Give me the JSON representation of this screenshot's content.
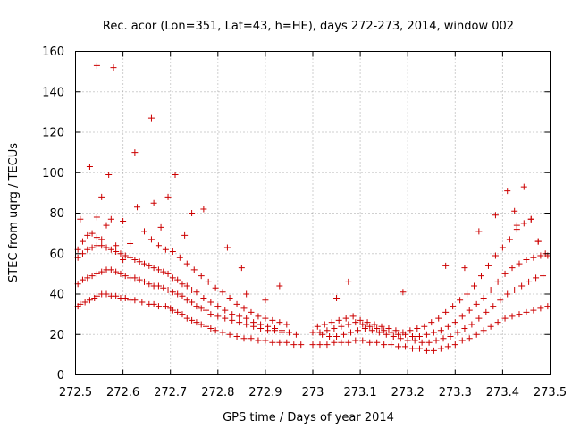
{
  "chart_data": {
    "type": "scatter",
    "title": "Rec. acor (Lon=351, Lat=43, h=HE), days 272-273, 2014, window 002",
    "xlabel": "GPS time / Days of year 2014",
    "ylabel": "STEC from uqrg / TECUs",
    "xlim": [
      272.5,
      273.5
    ],
    "ylim": [
      0,
      160
    ],
    "xticks": [
      "272.5",
      "272.6",
      "272.7",
      "272.8",
      "272.9",
      "273",
      "273.1",
      "273.2",
      "273.3",
      "273.4",
      "273.5"
    ],
    "yticks": [
      "0",
      "20",
      "40",
      "60",
      "80",
      "100",
      "120",
      "140",
      "160"
    ],
    "grid": true,
    "marker": "+",
    "color": "#cc0000",
    "series": [
      {
        "x": [
          272.505,
          272.51,
          272.52,
          272.53,
          272.54,
          272.545,
          272.555,
          272.565,
          272.575,
          272.585,
          272.595,
          272.605,
          272.615,
          272.625,
          272.64,
          272.655,
          272.665,
          272.675,
          272.69,
          272.7,
          272.705,
          272.715,
          272.725,
          272.735,
          272.745,
          272.755,
          272.765,
          272.775,
          272.785,
          272.795,
          272.81,
          272.825,
          272.84,
          272.855,
          272.87,
          272.885,
          272.9,
          272.915,
          272.93,
          272.945,
          272.96,
          272.975,
          273.0,
          273.015,
          273.03,
          273.045,
          273.06,
          273.075,
          273.09,
          273.105,
          273.12,
          273.135,
          273.15,
          273.165,
          273.18,
          273.195,
          273.21,
          273.225,
          273.24,
          273.255,
          273.27,
          273.285,
          273.3,
          273.315,
          273.33,
          273.345,
          273.36,
          273.375,
          273.39,
          273.405,
          273.42,
          273.435,
          273.45,
          273.465,
          273.48,
          273.495
        ],
        "y": [
          34,
          35,
          36,
          37,
          38,
          39,
          40,
          40,
          39,
          39,
          38,
          38,
          37,
          37,
          36,
          35,
          35,
          34,
          34,
          33,
          32,
          31,
          30,
          28,
          27,
          26,
          25,
          24,
          23,
          22,
          21,
          20,
          19,
          18,
          18,
          17,
          17,
          16,
          16,
          16,
          15,
          15,
          15,
          15,
          15,
          16,
          16,
          16,
          17,
          17,
          16,
          16,
          15,
          15,
          14,
          14,
          13,
          13,
          12,
          12,
          13,
          14,
          15,
          17,
          18,
          20,
          22,
          24,
          26,
          28,
          29,
          30,
          31,
          32,
          33,
          34
        ]
      },
      {
        "x": [
          272.505,
          272.515,
          272.525,
          272.535,
          272.545,
          272.555,
          272.565,
          272.575,
          272.585,
          272.595,
          272.605,
          272.615,
          272.625,
          272.635,
          272.645,
          272.655,
          272.665,
          272.675,
          272.685,
          272.695,
          272.705,
          272.715,
          272.725,
          272.735,
          272.745,
          272.755,
          272.765,
          272.775,
          272.785,
          272.8,
          272.815,
          272.83,
          272.845,
          272.86,
          272.875,
          272.89,
          272.905,
          272.92,
          272.935,
          272.95,
          272.965,
          273.02,
          273.035,
          273.05,
          273.065,
          273.08,
          273.095,
          273.11,
          273.125,
          273.14,
          273.155,
          273.17,
          273.185,
          273.2,
          273.215,
          273.23,
          273.245,
          273.26,
          273.275,
          273.29,
          273.305,
          273.32,
          273.335,
          273.35,
          273.365,
          273.38,
          273.395,
          273.41,
          273.425,
          273.44,
          273.455,
          273.47,
          273.485
        ],
        "y": [
          45,
          47,
          48,
          49,
          50,
          51,
          52,
          52,
          51,
          50,
          49,
          48,
          48,
          47,
          46,
          45,
          44,
          44,
          43,
          42,
          41,
          40,
          39,
          37,
          36,
          34,
          33,
          32,
          30,
          29,
          28,
          27,
          26,
          25,
          24,
          23,
          22,
          22,
          21,
          21,
          20,
          20,
          19,
          19,
          20,
          21,
          22,
          23,
          22,
          21,
          20,
          19,
          18,
          17,
          17,
          16,
          16,
          17,
          18,
          19,
          21,
          23,
          25,
          28,
          31,
          34,
          37,
          40,
          42,
          44,
          46,
          48,
          49
        ]
      },
      {
        "x": [
          272.505,
          272.515,
          272.525,
          272.535,
          272.545,
          272.555,
          272.565,
          272.575,
          272.585,
          272.595,
          272.605,
          272.615,
          272.625,
          272.635,
          272.645,
          272.655,
          272.665,
          272.675,
          272.685,
          272.695,
          272.705,
          272.715,
          272.725,
          272.735,
          272.745,
          272.755,
          272.77,
          272.785,
          272.8,
          272.815,
          272.83,
          272.845,
          272.86,
          272.875,
          272.89,
          272.905,
          272.92,
          272.935,
          272.95,
          273.0,
          273.015,
          273.03,
          273.045,
          273.06,
          273.075,
          273.09,
          273.105,
          273.12,
          273.135,
          273.15,
          273.165,
          273.18,
          273.195,
          273.21,
          273.225,
          273.24,
          273.255,
          273.27,
          273.285,
          273.3,
          273.315,
          273.33,
          273.345,
          273.36,
          273.375,
          273.39,
          273.405,
          273.42,
          273.435,
          273.45,
          273.465,
          273.48,
          273.495
        ],
        "y": [
          58,
          60,
          62,
          63,
          64,
          64,
          63,
          62,
          61,
          60,
          59,
          58,
          57,
          56,
          55,
          54,
          53,
          52,
          51,
          50,
          48,
          47,
          45,
          44,
          42,
          41,
          38,
          36,
          34,
          32,
          30,
          29,
          28,
          26,
          25,
          24,
          23,
          22,
          21,
          21,
          21,
          22,
          23,
          24,
          25,
          26,
          25,
          24,
          23,
          22,
          21,
          20,
          20,
          19,
          19,
          20,
          21,
          22,
          24,
          26,
          29,
          32,
          35,
          38,
          42,
          46,
          50,
          53,
          55,
          57,
          58,
          59,
          59
        ]
      },
      {
        "x": [
          272.505,
          272.515,
          272.525,
          272.535,
          272.545,
          272.555,
          272.565,
          272.575,
          272.585,
          272.6,
          272.615,
          272.63,
          272.645,
          272.66,
          272.675,
          272.69,
          272.705,
          272.72,
          272.735,
          272.75,
          272.765,
          272.78,
          272.795,
          272.81,
          272.825,
          272.84,
          272.855,
          272.87,
          272.885,
          272.9,
          272.915,
          272.93,
          272.945,
          273.01,
          273.025,
          273.04,
          273.055,
          273.07,
          273.085,
          273.1,
          273.115,
          273.13,
          273.145,
          273.16,
          273.175,
          273.19,
          273.205,
          273.22,
          273.235,
          273.25,
          273.265,
          273.28,
          273.295,
          273.31,
          273.325,
          273.34,
          273.355,
          273.37,
          273.385,
          273.4,
          273.415,
          273.43,
          273.445,
          273.46,
          273.475,
          273.49
        ],
        "y": [
          62,
          66,
          69,
          70,
          68,
          67,
          74,
          77,
          64,
          57,
          65,
          83,
          71,
          67,
          64,
          62,
          61,
          58,
          55,
          52,
          49,
          46,
          43,
          41,
          38,
          35,
          33,
          31,
          29,
          28,
          27,
          26,
          25,
          24,
          25,
          26,
          27,
          28,
          29,
          27,
          26,
          25,
          24,
          23,
          22,
          21,
          22,
          23,
          24,
          26,
          28,
          31,
          34,
          37,
          40,
          44,
          49,
          54,
          59,
          63,
          67,
          72,
          75,
          77,
          66,
          60
        ]
      },
      {
        "x": [
          272.51,
          272.53,
          272.545,
          272.555,
          272.57,
          272.58,
          272.6,
          272.625,
          272.66,
          272.665,
          272.68,
          272.695,
          272.71,
          272.73,
          272.745,
          272.77,
          272.82,
          272.85,
          272.86,
          272.9,
          272.93,
          273.05,
          273.075,
          273.19,
          273.28,
          273.32,
          273.35,
          273.385,
          273.41,
          273.425,
          273.43,
          273.445,
          273.46,
          273.475
        ],
        "y": [
          77,
          103,
          78,
          88,
          99,
          152,
          76,
          110,
          127,
          85,
          73,
          88,
          99,
          69,
          80,
          82,
          63,
          53,
          40,
          37,
          44,
          38,
          46,
          41,
          54,
          53,
          71,
          79,
          91,
          81,
          74,
          93,
          77,
          66
        ]
      },
      {
        "x": [
          272.545
        ],
        "y": [
          153
        ]
      }
    ]
  }
}
